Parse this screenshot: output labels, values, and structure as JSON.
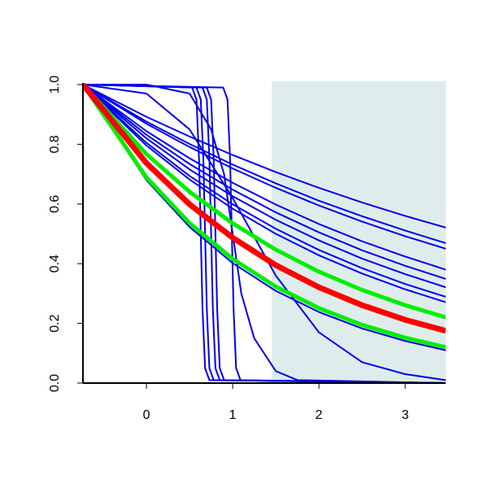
{
  "chart_data": {
    "type": "line",
    "xlim": [
      -0.736,
      3.47
    ],
    "ylim": [
      0,
      1
    ],
    "xticks": [
      0,
      1,
      2,
      3
    ],
    "yticks": [
      {
        "value": 0,
        "label": "0.0"
      },
      {
        "value": 0.2,
        "label": "0.2"
      },
      {
        "value": 0.4,
        "label": "0.4"
      },
      {
        "value": 0.6,
        "label": "0.6"
      },
      {
        "value": 0.8,
        "label": "0.8"
      },
      {
        "value": 1,
        "label": "1.0"
      }
    ],
    "shaded_region": {
      "x": [
        1.453,
        3.47
      ],
      "color": "#dfecec"
    },
    "series": [
      {
        "color": "#0000ee",
        "line_width": 2,
        "x": [
          -0.736,
          0,
          0.5,
          1,
          1.5,
          2,
          2.5,
          3,
          3.47
        ],
        "values": [
          1,
          0.892,
          0.826,
          0.764,
          0.707,
          0.654,
          0.605,
          0.56,
          0.521
        ]
      },
      {
        "color": "#0000ee",
        "line_width": 2,
        "x": [
          -0.736,
          0,
          0.5,
          1,
          1.5,
          2,
          2.5,
          3,
          3.47
        ],
        "values": [
          1,
          0.876,
          0.801,
          0.732,
          0.669,
          0.611,
          0.559,
          0.511,
          0.469
        ]
      },
      {
        "color": "#0000ee",
        "line_width": 2,
        "x": [
          -0.736,
          0,
          0.5,
          1,
          1.5,
          2,
          2.5,
          3,
          3.47
        ],
        "values": [
          1,
          0.869,
          0.791,
          0.719,
          0.654,
          0.595,
          0.541,
          0.492,
          0.45
        ]
      },
      {
        "color": "#0000ee",
        "line_width": 2,
        "x": [
          -0.736,
          0,
          0.5,
          1,
          1.5,
          2,
          2.5,
          3,
          3.47
        ],
        "values": [
          1,
          0.844,
          0.753,
          0.671,
          0.598,
          0.533,
          0.475,
          0.424,
          0.38
        ]
      },
      {
        "color": "#0000ee",
        "line_width": 2,
        "x": [
          -0.736,
          0,
          0.5,
          1,
          1.5,
          2,
          2.5,
          3,
          3.47
        ],
        "values": [
          1,
          0.832,
          0.734,
          0.648,
          0.572,
          0.505,
          0.445,
          0.393,
          0.349
        ]
      },
      {
        "color": "#0000ee",
        "line_width": 2,
        "x": [
          -0.736,
          0,
          0.5,
          1,
          1.5,
          2,
          2.5,
          3,
          3.47
        ],
        "values": [
          1,
          0.82,
          0.716,
          0.626,
          0.547,
          0.478,
          0.417,
          0.365,
          0.321
        ]
      },
      {
        "color": "#0000ee",
        "line_width": 2,
        "x": [
          -0.736,
          0,
          0.5,
          1,
          1.5,
          2,
          2.5,
          3,
          3.47
        ],
        "values": [
          1,
          0.805,
          0.694,
          0.599,
          0.517,
          0.446,
          0.385,
          0.332,
          0.289
        ]
      },
      {
        "color": "#0000ee",
        "line_width": 2,
        "x": [
          -0.736,
          0,
          0.5,
          1,
          1.5,
          2,
          2.5,
          3,
          3.47
        ],
        "values": [
          1,
          0.796,
          0.682,
          0.584,
          0.5,
          0.428,
          0.367,
          0.314,
          0.271
        ]
      },
      {
        "color": "#0000ee",
        "line_width": 2,
        "x": [
          -0.736,
          0,
          0.5,
          1,
          1.5,
          2,
          2.5,
          3,
          3.47
        ],
        "values": [
          1,
          0.68,
          0.523,
          0.402,
          0.309,
          0.238,
          0.183,
          0.141,
          0.11
        ]
      },
      {
        "color": "#0000ee",
        "line_width": 2,
        "x": [
          -0.736,
          0,
          0.5,
          1,
          1.5,
          2,
          2.5,
          3,
          3.47
        ],
        "values": [
          1,
          0.97,
          0.85,
          0.62,
          0.36,
          0.17,
          0.07,
          0.03,
          0.01
        ]
      },
      {
        "color": "#0000ee",
        "line_width": 2,
        "x": [
          -0.736,
          0,
          0.5,
          0.75,
          0.9,
          1.0,
          1.1,
          1.25,
          1.5,
          1.75,
          3.47
        ],
        "values": [
          1,
          1,
          0.97,
          0.85,
          0.7,
          0.5,
          0.3,
          0.15,
          0.04,
          0.01,
          0
        ]
      },
      {
        "color": "#0000ee",
        "line_width": 2,
        "x": [
          -0.736,
          0.53,
          0.58,
          0.61,
          0.63,
          0.65,
          0.68,
          0.73,
          3.47
        ],
        "values": [
          1,
          0.99,
          0.95,
          0.75,
          0.5,
          0.25,
          0.05,
          0.01,
          0
        ]
      },
      {
        "color": "#0000ee",
        "line_width": 2,
        "x": [
          -0.736,
          0.58,
          0.63,
          0.66,
          0.68,
          0.7,
          0.73,
          0.78,
          3.47
        ],
        "values": [
          1,
          0.99,
          0.95,
          0.75,
          0.5,
          0.25,
          0.05,
          0.01,
          0
        ]
      },
      {
        "color": "#0000ee",
        "line_width": 2,
        "x": [
          -0.736,
          0.65,
          0.7,
          0.73,
          0.75,
          0.77,
          0.8,
          0.85,
          3.47
        ],
        "values": [
          1,
          0.99,
          0.95,
          0.75,
          0.5,
          0.25,
          0.05,
          0.01,
          0
        ]
      },
      {
        "color": "#0000ee",
        "line_width": 2,
        "x": [
          -0.736,
          0.7,
          0.75,
          0.78,
          0.8,
          0.82,
          0.85,
          0.9,
          3.47
        ],
        "values": [
          1,
          0.99,
          0.95,
          0.75,
          0.5,
          0.25,
          0.05,
          0.01,
          0
        ]
      },
      {
        "color": "#0000ee",
        "line_width": 2,
        "x": [
          -0.736,
          0.89,
          0.94,
          0.97,
          0.99,
          1.01,
          1.04,
          1.09,
          3.47
        ],
        "values": [
          1,
          0.99,
          0.95,
          0.75,
          0.5,
          0.25,
          0.05,
          0.01,
          0
        ]
      },
      {
        "color": "#00ee00",
        "line_width": 5,
        "x": [
          -0.736,
          0,
          0.5,
          1,
          1.5,
          2,
          2.5,
          3,
          3.47
        ],
        "values": [
          1,
          0.767,
          0.641,
          0.535,
          0.447,
          0.373,
          0.312,
          0.261,
          0.22
        ]
      },
      {
        "color": "#00ee00",
        "line_width": 5,
        "x": [
          -0.736,
          0,
          0.5,
          1,
          1.5,
          2,
          2.5,
          3,
          3.47
        ],
        "values": [
          1,
          0.689,
          0.536,
          0.416,
          0.323,
          0.251,
          0.195,
          0.152,
          0.12
        ]
      },
      {
        "color": "#ff0000",
        "line_width": 7,
        "x": [
          -0.736,
          0,
          0.5,
          1,
          1.5,
          2,
          2.5,
          3,
          3.47
        ],
        "values": [
          1,
          0.737,
          0.599,
          0.487,
          0.395,
          0.321,
          0.261,
          0.212,
          0.175
        ]
      }
    ]
  }
}
